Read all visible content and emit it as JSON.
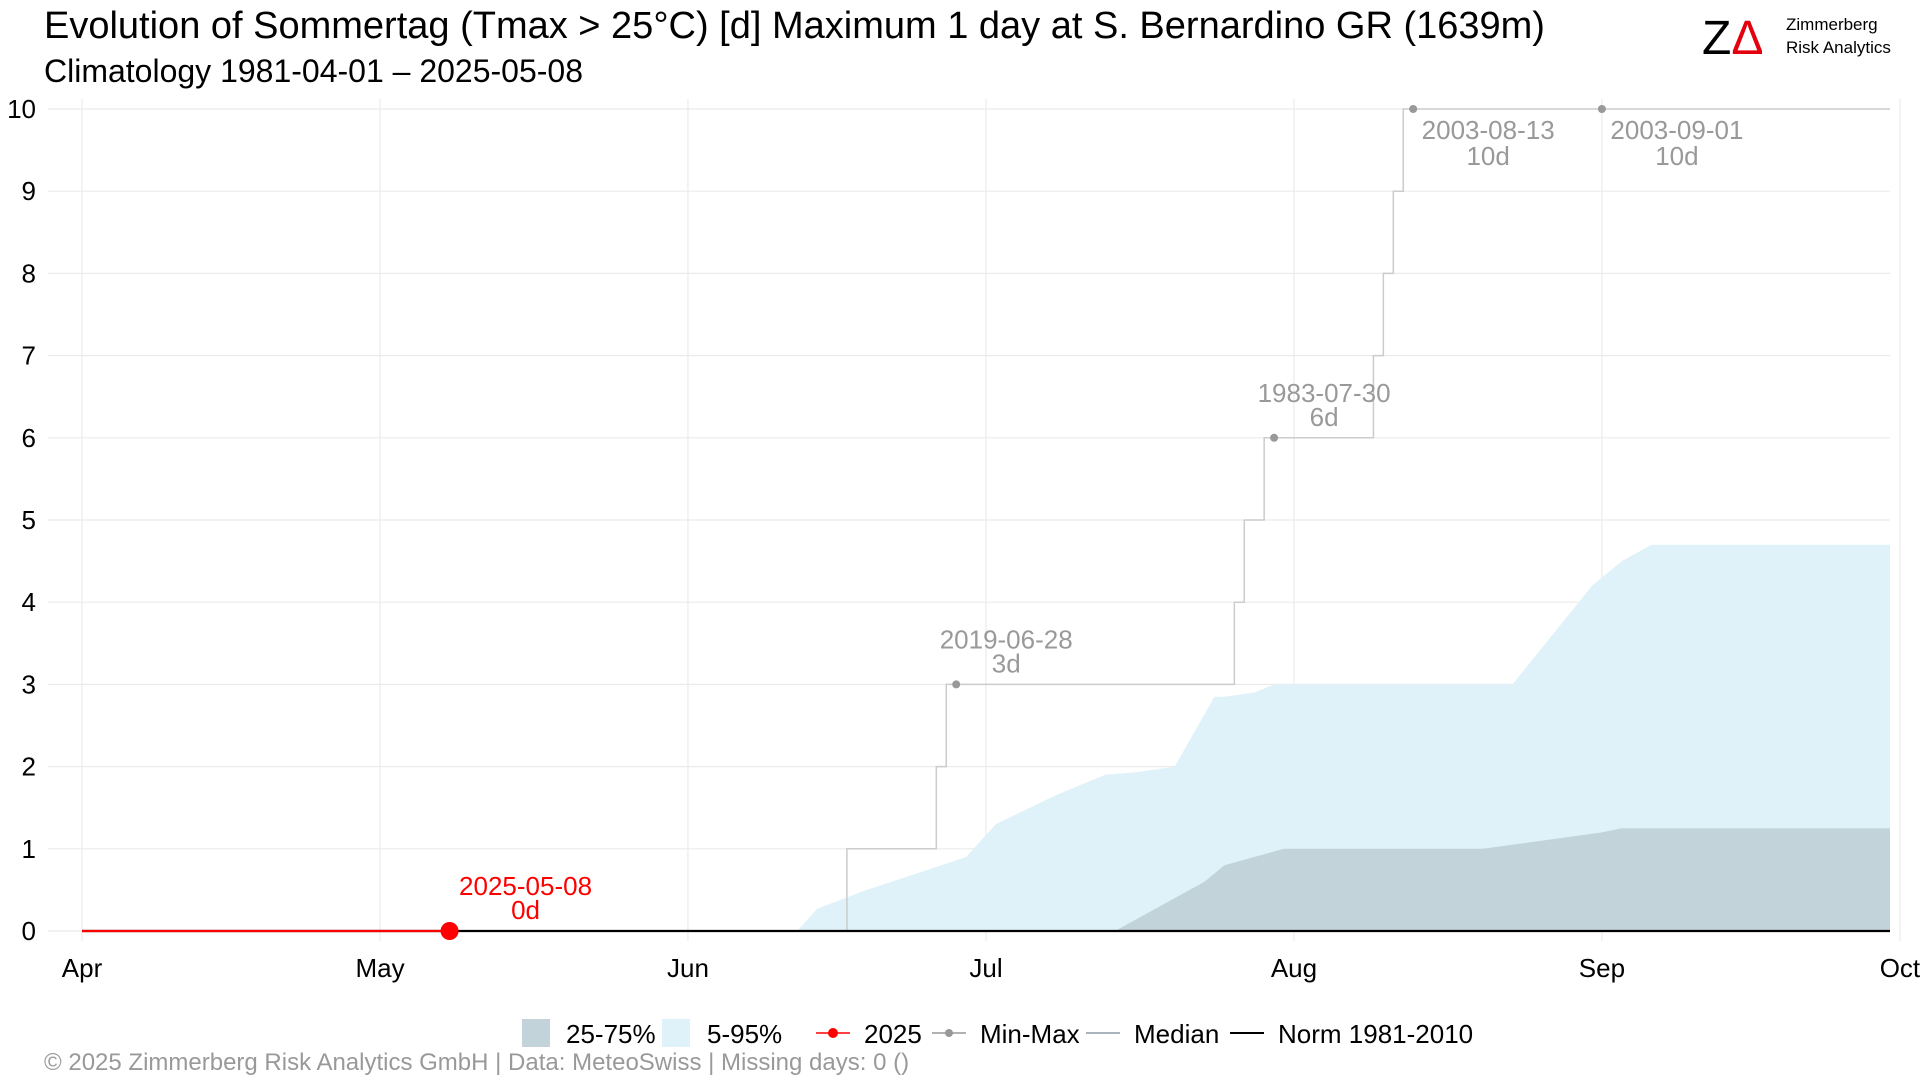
{
  "header": {
    "title": "Evolution of Sommertag (Tmax > 25°C) [d] Maximum 1 day at S. Bernardino  GR (1639m)",
    "subtitle": "Climatology 1981-04-01 – 2025-05-08"
  },
  "logo": {
    "mark": "ZΔ",
    "line1": "Zimmerberg",
    "line2": "Risk Analytics",
    "accent_color": "#e3000f"
  },
  "footer": {
    "text": "©  2025 Zimmerberg Risk Analytics GmbH | Data: MeteoSwiss | Missing days: 0 ()"
  },
  "colors": {
    "band_25_75": "#c2d4da",
    "band_5_95": "#dff2f9",
    "current_year": "#ff0000",
    "min_max": "#999999",
    "min_max_line": "#cccccc",
    "median": "#aab4bc",
    "norm": "#000000",
    "grid": "#ebebeb",
    "annotation": "#999999"
  },
  "chart_data": {
    "type": "area",
    "xlabel": "",
    "ylabel": "",
    "x_domain": [
      "04-01",
      "09-30"
    ],
    "ylim": [
      0,
      10
    ],
    "grid": true,
    "x_ticks": [
      {
        "date": "04-01",
        "label": "Apr"
      },
      {
        "date": "05-01",
        "label": "May"
      },
      {
        "date": "06-01",
        "label": "Jun"
      },
      {
        "date": "07-01",
        "label": "Jul"
      },
      {
        "date": "08-01",
        "label": "Aug"
      },
      {
        "date": "09-01",
        "label": "Sep"
      },
      {
        "date": "10-01",
        "label": "Oct"
      }
    ],
    "y_ticks": [
      0,
      1,
      2,
      3,
      4,
      5,
      6,
      7,
      8,
      9,
      10
    ],
    "band_5_95": {
      "dates": [
        "04-01",
        "06-12",
        "06-14",
        "06-19",
        "06-24",
        "06-29",
        "07-02",
        "07-08",
        "07-13",
        "07-16",
        "07-20",
        "07-24",
        "07-25",
        "07-28",
        "07-30",
        "08-01",
        "08-10",
        "08-20",
        "08-23",
        "08-31",
        "09-03",
        "09-06",
        "09-30"
      ],
      "low": [
        0,
        0,
        0,
        0,
        0,
        0,
        0,
        0,
        0,
        0,
        0,
        0,
        0,
        0,
        0,
        0,
        0,
        0,
        0,
        0,
        0,
        0,
        0
      ],
      "high": [
        0,
        0,
        0.27,
        0.5,
        0.7,
        0.9,
        1.3,
        1.65,
        1.9,
        1.93,
        2.0,
        2.85,
        2.85,
        2.9,
        3.0,
        3.0,
        3.0,
        3.0,
        3.0,
        4.2,
        4.5,
        4.7,
        4.7
      ]
    },
    "band_25_75": {
      "dates": [
        "04-01",
        "07-14",
        "07-20",
        "07-23",
        "07-25",
        "07-28",
        "07-31",
        "08-07",
        "08-15",
        "08-20",
        "09-01",
        "09-03",
        "09-30"
      ],
      "low": [
        0,
        0,
        0,
        0,
        0,
        0,
        0,
        0,
        0,
        0,
        0,
        0,
        0
      ],
      "high": [
        0,
        0,
        0.4,
        0.6,
        0.8,
        0.9,
        1.0,
        1.0,
        1.0,
        1.0,
        1.2,
        1.25,
        1.25
      ]
    },
    "median": {
      "name": "Median",
      "dates": [
        "04-01",
        "09-30"
      ],
      "values": [
        0,
        0
      ]
    },
    "norm": {
      "name": "Norm 1981-2010",
      "dates": [
        "04-01",
        "09-30"
      ],
      "values": [
        0,
        0
      ]
    },
    "min_max_steps": [
      {
        "date": "04-01",
        "value": 0
      },
      {
        "date": "06-17",
        "value": 1
      },
      {
        "date": "06-26",
        "value": 2
      },
      {
        "date": "06-27",
        "value": 3
      },
      {
        "date": "07-26",
        "value": 4
      },
      {
        "date": "07-27",
        "value": 5
      },
      {
        "date": "07-29",
        "value": 6
      },
      {
        "date": "08-09",
        "value": 7
      },
      {
        "date": "08-10",
        "value": 8
      },
      {
        "date": "08-11",
        "value": 9
      },
      {
        "date": "08-12",
        "value": 10
      },
      {
        "date": "09-30",
        "value": 10
      }
    ],
    "min_max_points": [
      {
        "date": "06-28",
        "value": 3,
        "label_date": "2019-06-28",
        "label_value": "3d"
      },
      {
        "date": "07-30",
        "value": 6,
        "label_date": "1983-07-30",
        "label_value": "6d"
      },
      {
        "date": "08-13",
        "value": 10,
        "label_date": "2003-08-13",
        "label_value": "10d"
      },
      {
        "date": "09-01",
        "value": 10,
        "label_date": "2003-09-01",
        "label_value": "10d"
      }
    ],
    "current_year": {
      "name": "2025",
      "dates": [
        "04-01",
        "05-08"
      ],
      "values": [
        0,
        0
      ],
      "last": {
        "date": "05-08",
        "value": 0,
        "label_date": "2025-05-08",
        "label_value": "0d"
      }
    },
    "legend": {
      "position": "bottom",
      "items": [
        {
          "key": "band_25_75",
          "label": "25-75%"
        },
        {
          "key": "band_5_95",
          "label": "5-95%"
        },
        {
          "key": "current_year",
          "label": "2025"
        },
        {
          "key": "min_max",
          "label": "Min-Max"
        },
        {
          "key": "median",
          "label": "Median"
        },
        {
          "key": "norm",
          "label": "Norm 1981-2010"
        }
      ]
    }
  }
}
